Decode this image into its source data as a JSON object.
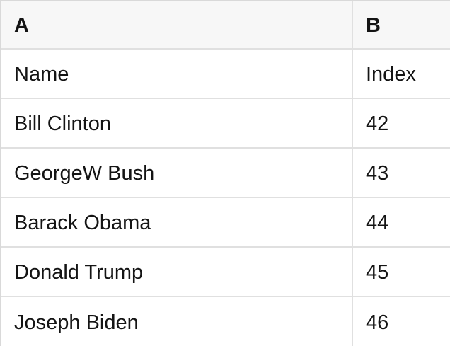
{
  "table": {
    "column_headers": [
      {
        "id": "A",
        "label": "A"
      },
      {
        "id": "B",
        "label": "B"
      }
    ],
    "rows": [
      {
        "cells": [
          "Name",
          "Index"
        ]
      },
      {
        "cells": [
          "Bill Clinton",
          "42"
        ]
      },
      {
        "cells": [
          "GeorgeW Bush",
          "43"
        ]
      },
      {
        "cells": [
          "Barack Obama",
          "44"
        ]
      },
      {
        "cells": [
          "Donald Trump",
          "45"
        ]
      },
      {
        "cells": [
          "Joseph Biden",
          "46"
        ]
      }
    ]
  },
  "colors": {
    "header_bg": "#f7f7f7",
    "row_bg": "#ffffff",
    "border": "#e0e0e0",
    "border_outer": "#d9d9d9",
    "text": "#141414"
  }
}
